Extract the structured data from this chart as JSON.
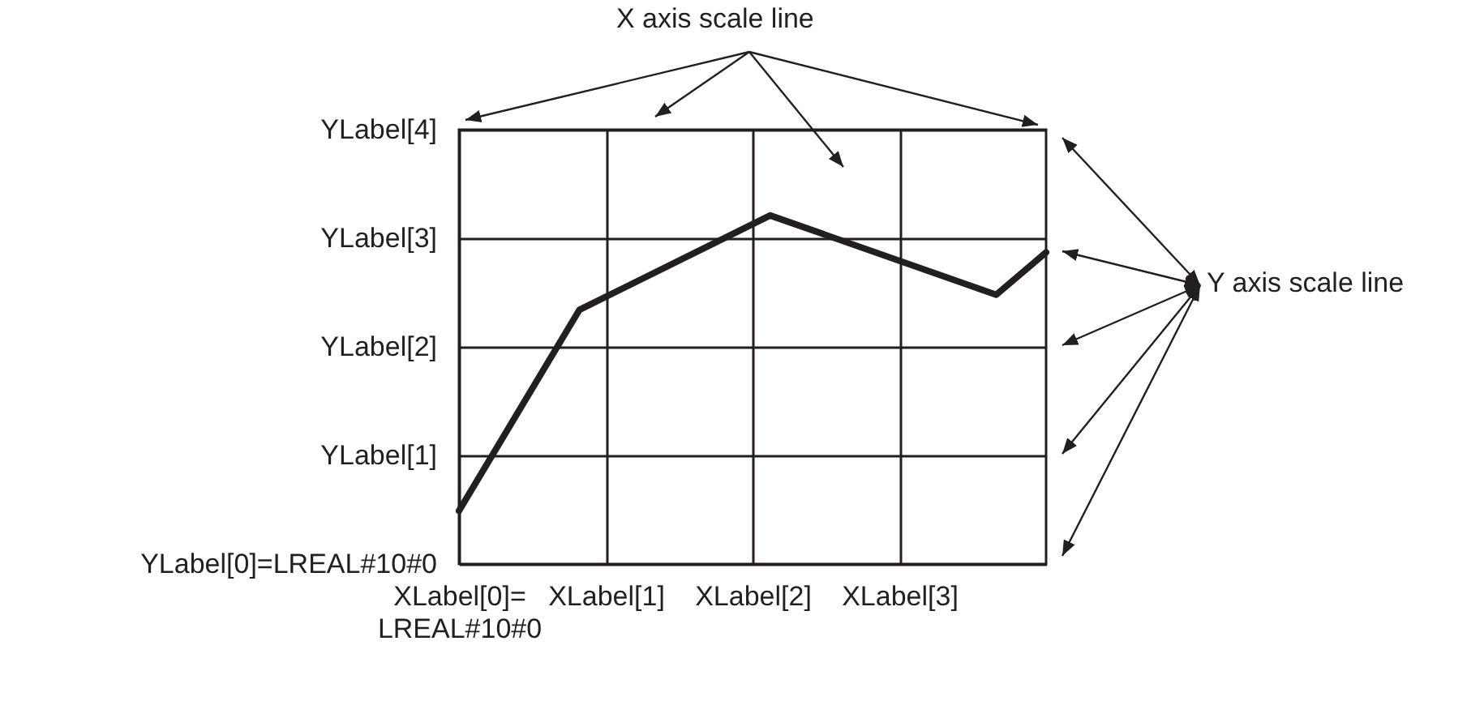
{
  "chart_data": {
    "type": "line",
    "x": [
      0,
      0.82,
      2.12,
      3.66,
      4
    ],
    "series": [
      {
        "color": "#231f20",
        "values": [
          0.49,
          2.34,
          3.21,
          2.48,
          2.87
        ]
      }
    ],
    "xlim": [
      0,
      4
    ],
    "ylim": [
      0,
      4
    ],
    "xticks": [
      {
        "value": 0,
        "label": "XLabel[0]=LREAL#10#0"
      },
      {
        "value": 1,
        "label": "XLabel[1]"
      },
      {
        "value": 2,
        "label": "XLabel[2]"
      },
      {
        "value": 3,
        "label": "XLabel[3]"
      }
    ],
    "yticks": [
      {
        "value": 0,
        "label": "YLabel[0]=LREAL#10#0"
      },
      {
        "value": 1,
        "label": "YLabel[1]"
      },
      {
        "value": 2,
        "label": "YLabel[2]"
      },
      {
        "value": 3,
        "label": "YLabel[3]"
      },
      {
        "value": 4,
        "label": "YLabel[4]"
      }
    ],
    "grid": true,
    "marker": "none",
    "line_style": "solid",
    "annotations": [
      "X axis scale line",
      "Y axis scale line"
    ]
  }
}
